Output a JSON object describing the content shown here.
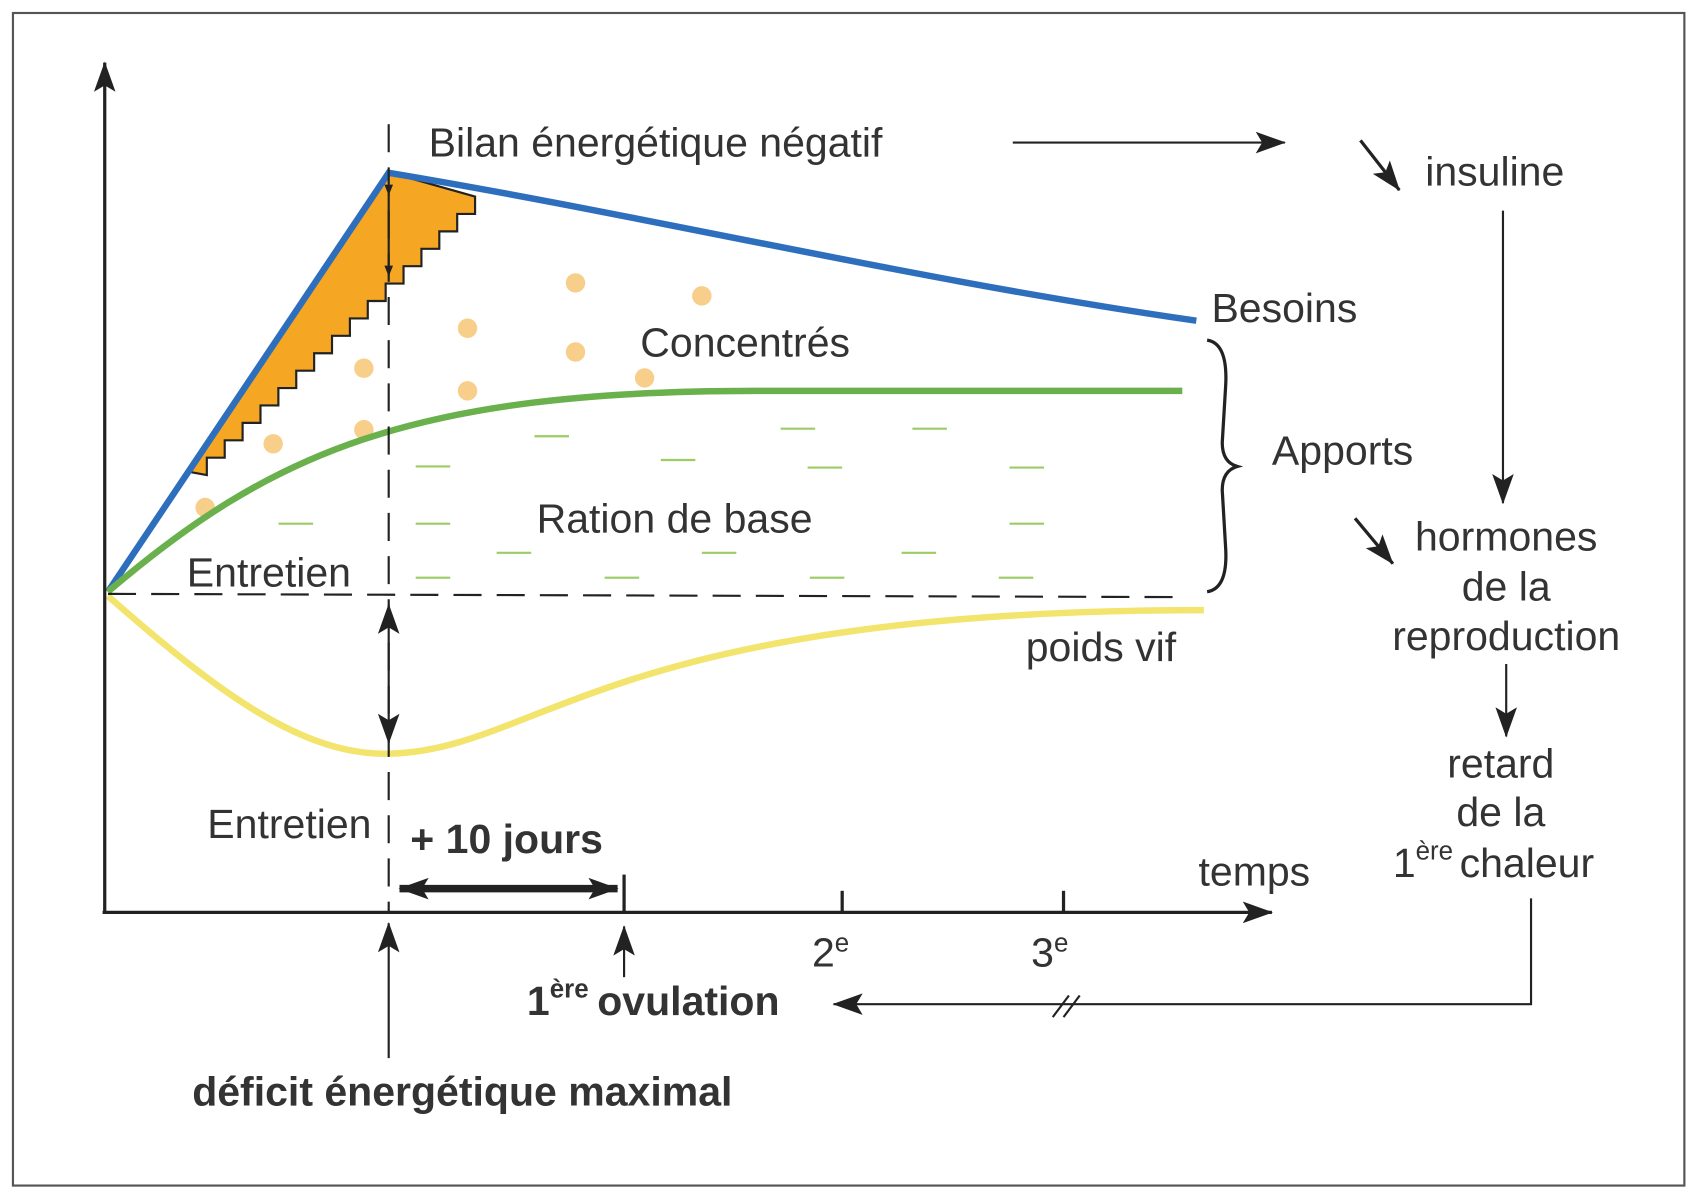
{
  "labels": {
    "bilan": "Bilan énergétique  négatif",
    "insuline": "insuline",
    "besoins": "Besoins",
    "concentres": "Concentrés",
    "apports": "Apports",
    "hormones": [
      "hormones",
      "de la",
      "reproduction"
    ],
    "ration": "Ration de base",
    "entretien_top": "Entretien",
    "poids_vif": "poids vif",
    "retard": [
      "retard",
      "de la"
    ],
    "chaleur": {
      "base": "1",
      "sup": "ère",
      "text": "chaleur"
    },
    "entretien_bottom": "Entretien",
    "jours": "+ 10 jours",
    "temps": "temps",
    "ticks": [
      {
        "base": "2",
        "sup": "e"
      },
      {
        "base": "3",
        "sup": "e"
      }
    ],
    "ovulation": {
      "base": "1",
      "sup": "ère",
      "text": "ovulation"
    },
    "deficit": "déficit énergétique maximal"
  }
}
